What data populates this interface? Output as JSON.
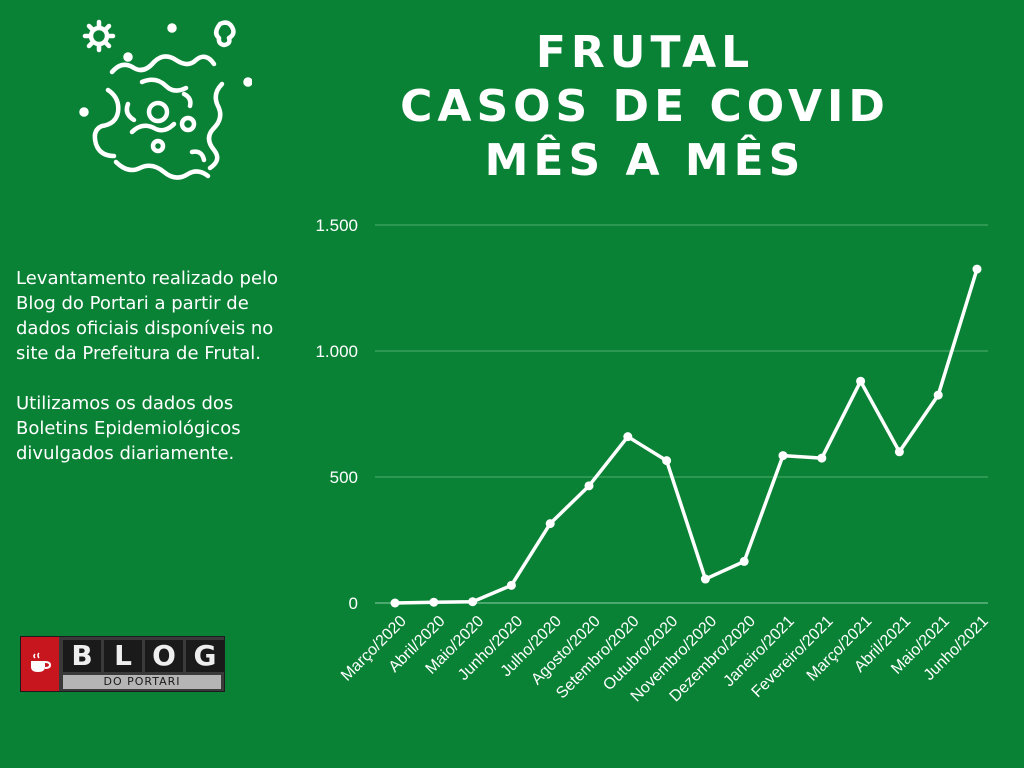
{
  "title": {
    "lines": [
      "FRUTAL",
      "CASOS DE COVID",
      "MÊS A MÊS"
    ]
  },
  "description": {
    "paragraph1": "Levantamento realizado pelo Blog do Portari a partir de dados oficiais disponíveis no site da Prefeitura de Frutal.",
    "paragraph2": "Utilizamos os dados dos Boletins Epidemiológicos divulgados diariamente."
  },
  "logo": {
    "letters": [
      "B",
      "L",
      "O",
      "G"
    ],
    "subtitle": "DO PORTARI",
    "icon": "coffee-cup-icon"
  },
  "decor": {
    "icon": "virus-icon"
  },
  "colors": {
    "background": "#0a8236",
    "line": "#ffffff",
    "grid": "#4fae6c",
    "logo_red": "#c8161e"
  },
  "chart_data": {
    "type": "line",
    "categories": [
      "Março/2020",
      "Abril/2020",
      "Maio/2020",
      "Junho/2020",
      "Julho/2020",
      "Agosto/2020",
      "Setembro/2020",
      "Outubro/2020",
      "Novembro/2020",
      "Dezembro/2020",
      "Janeiro/2021",
      "Fevereiro/2021",
      "Março/2021",
      "Abril/2021",
      "Maio/2021",
      "Junho/2021"
    ],
    "values": [
      0,
      3,
      5,
      70,
      315,
      465,
      660,
      565,
      95,
      165,
      585,
      575,
      880,
      600,
      825,
      1325
    ],
    "ylim": [
      0,
      1500
    ],
    "yticks": [
      0,
      500,
      1000,
      1500
    ],
    "ytick_labels": [
      "0",
      "500",
      "1.000",
      "1.500"
    ],
    "grid": true,
    "legend": "none"
  }
}
